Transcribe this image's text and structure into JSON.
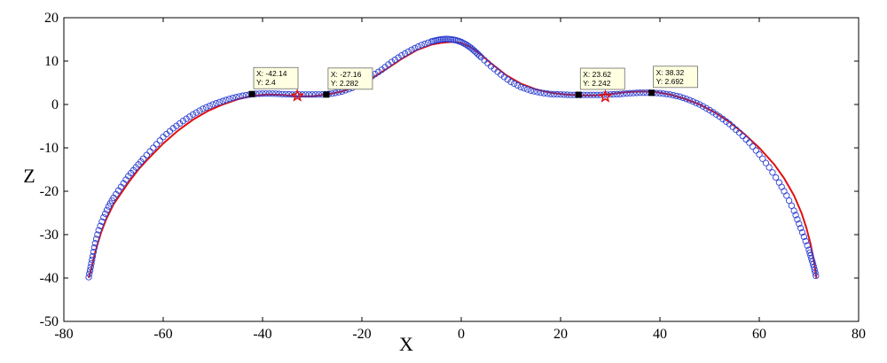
{
  "chart_data": {
    "type": "scatter",
    "title": "",
    "xlabel": "X",
    "ylabel": "Z",
    "xlim": [
      -80,
      80
    ],
    "ylim": [
      -50,
      20
    ],
    "xticks": [
      -80,
      -60,
      -40,
      -20,
      0,
      20,
      40,
      60,
      80
    ],
    "yticks": [
      -50,
      -40,
      -30,
      -20,
      -10,
      0,
      10,
      20
    ],
    "grid": false,
    "colors": {
      "measured": "#2b3fd0",
      "fit": "#e01010",
      "marker": "#000000",
      "tip_bg": "#ffffe1"
    },
    "series": [
      {
        "style": "blue-circles",
        "x": [
          -75,
          -74.6,
          -74.2,
          -73.7,
          -73,
          -72,
          -71,
          -70,
          -68.5,
          -67,
          -65.5,
          -64,
          -62,
          -60,
          -58,
          -56,
          -54,
          -52,
          -50,
          -48,
          -46,
          -44,
          -42,
          -40,
          -38,
          -36,
          -34,
          -32,
          -30,
          -28,
          -26,
          -24,
          -22,
          -20,
          -18,
          -16,
          -14,
          -12,
          -10,
          -8,
          -6,
          -5,
          -4,
          -3,
          -2,
          -1,
          0,
          1,
          2,
          3,
          4,
          6,
          8,
          10,
          12,
          14,
          16,
          18,
          20,
          22,
          24,
          26,
          28,
          30,
          32,
          34,
          36,
          38,
          40,
          42,
          44,
          46,
          48,
          50,
          52,
          54,
          56,
          58,
          60,
          62,
          64,
          65.5,
          67,
          68,
          69,
          70,
          70.5,
          71,
          71.4
        ],
        "y": [
          -39.8,
          -37.5,
          -35,
          -32,
          -29,
          -26,
          -23.5,
          -21.5,
          -19,
          -16.5,
          -14.5,
          -12.5,
          -10,
          -7.5,
          -5.5,
          -3.8,
          -2.3,
          -1,
          0,
          0.8,
          1.5,
          2,
          2.4,
          2.5,
          2.5,
          2.4,
          2.3,
          2.3,
          2.3,
          2.3,
          2.5,
          3,
          3.8,
          5,
          6.5,
          8,
          9.8,
          11.3,
          12.6,
          13.7,
          14.5,
          14.8,
          15,
          15.1,
          15,
          14.8,
          14.4,
          13.8,
          13,
          12,
          10.9,
          8.8,
          6.9,
          5.2,
          4,
          3.2,
          2.7,
          2.4,
          2.3,
          2.2,
          2.2,
          2.2,
          2.2,
          2.3,
          2.4,
          2.6,
          2.7,
          2.7,
          2.6,
          2.3,
          1.8,
          1,
          0,
          -1.3,
          -2.8,
          -4.5,
          -6.5,
          -8.8,
          -11.5,
          -14.5,
          -18,
          -21,
          -24.5,
          -27.5,
          -30.5,
          -33.5,
          -35.5,
          -37.5,
          -39.5
        ]
      },
      {
        "style": "red-line",
        "x": [
          -75,
          -74.5,
          -74,
          -73.3,
          -72.5,
          -71.5,
          -70,
          -68.5,
          -67,
          -65,
          -63,
          -60,
          -57,
          -54,
          -51,
          -48,
          -45,
          -42,
          -39,
          -36,
          -33,
          -30,
          -27,
          -24,
          -21,
          -18,
          -15,
          -12,
          -9,
          -6,
          -4,
          -2,
          0,
          2,
          4,
          6,
          9,
          12,
          15,
          18,
          21,
          24,
          27,
          30,
          33,
          36,
          39,
          42,
          45,
          48,
          51,
          54,
          57,
          60,
          63,
          65,
          67,
          68.5,
          69.5,
          70.3,
          71,
          71.5
        ],
        "y": [
          -40,
          -38,
          -35.5,
          -32.5,
          -29.5,
          -26.5,
          -23,
          -20.5,
          -18,
          -15,
          -12.5,
          -9,
          -6,
          -3.5,
          -1.5,
          0,
          1.2,
          2,
          2.3,
          2.2,
          1.9,
          1.9,
          2.3,
          3,
          4.2,
          6,
          8.2,
          10.5,
          12.5,
          13.8,
          14.2,
          14.4,
          14.2,
          13.2,
          11.5,
          9.5,
          6.8,
          4.8,
          3.5,
          2.7,
          2.3,
          2.1,
          2.1,
          2.4,
          2.8,
          3,
          2.9,
          2.3,
          1.3,
          0,
          -1.8,
          -4,
          -6.8,
          -10,
          -13.8,
          -17,
          -21,
          -25,
          -28.5,
          -32,
          -36,
          -40
        ]
      }
    ],
    "star_markers": [
      {
        "x": -33,
        "y": 2.0
      },
      {
        "x": 29,
        "y": 1.8
      }
    ],
    "datatips": [
      {
        "x": -42.14,
        "y": 2.4,
        "x_text": "X: -42.14",
        "y_text": "Y: 2.4",
        "dx": 2,
        "dy": -30
      },
      {
        "x": -27.16,
        "y": 2.282,
        "x_text": "X: -27.16",
        "y_text": "Y: 2.282",
        "dx": 2,
        "dy": -30
      },
      {
        "x": 23.62,
        "y": 2.242,
        "x_text": "X: 23.62",
        "y_text": "Y: 2.242",
        "dx": 2,
        "dy": -30
      },
      {
        "x": 38.32,
        "y": 2.692,
        "x_text": "X: 38.32",
        "y_text": "Y: 2.692",
        "dx": 2,
        "dy": -30
      }
    ]
  }
}
